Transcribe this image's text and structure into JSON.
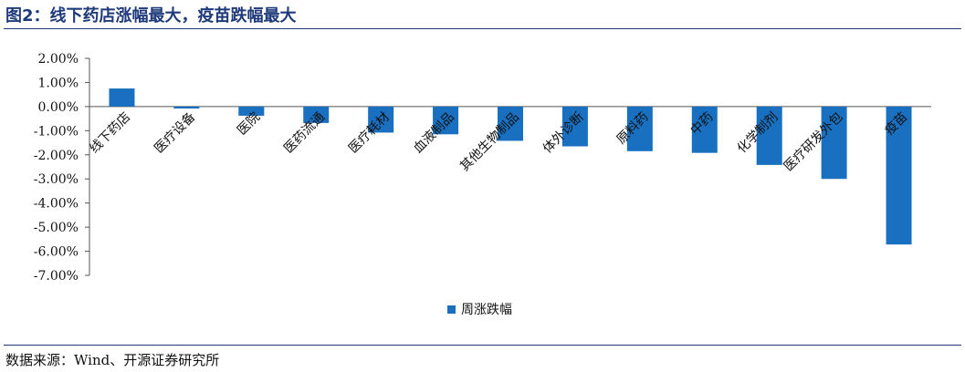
{
  "header": {
    "title": "图2：线下药店涨幅最大，疫苗跌幅最大"
  },
  "footer": {
    "source": "数据来源：Wind、开源证券研究所"
  },
  "colors": {
    "bar": "#1a70c0",
    "rule": "#1f3a7a"
  },
  "chart_data": {
    "type": "bar",
    "title": "",
    "xlabel": "",
    "ylabel": "",
    "categories": [
      "线下药店",
      "医疗设备",
      "医院",
      "医药流通",
      "医疗耗材",
      "血液制品",
      "其他生物制品",
      "体外诊断",
      "原料药",
      "中药",
      "化学制剂",
      "医疗研发外包",
      "疫苗"
    ],
    "series": [
      {
        "name": "周涨跌幅",
        "values": [
          0.75,
          -0.08,
          -0.38,
          -0.68,
          -1.08,
          -1.15,
          -1.42,
          -1.65,
          -1.85,
          -1.92,
          -2.42,
          -3.0,
          -5.72
        ]
      }
    ],
    "ylim": [
      -7,
      2
    ],
    "yticks": [
      "2.00%",
      "1.00%",
      "0.00%",
      "-1.00%",
      "-2.00%",
      "-3.00%",
      "-4.00%",
      "-5.00%",
      "-6.00%",
      "-7.00%"
    ],
    "legend_position": "bottom-center",
    "grid": false
  }
}
